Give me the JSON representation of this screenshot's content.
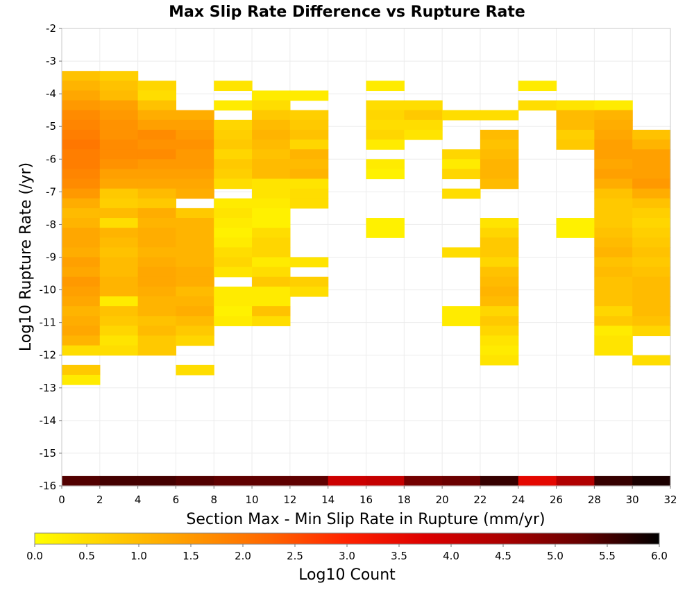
{
  "chart_data": {
    "type": "heatmap",
    "title": "Max Slip Rate Difference vs Rupture Rate",
    "xlabel": "Section Max - Min Slip Rate in Rupture (mm/yr)",
    "ylabel": "Log10 Rupture Rate (/yr)",
    "xlim": [
      0,
      32
    ],
    "ylim": [
      -16,
      -2
    ],
    "x_ticks": [
      0,
      2,
      4,
      6,
      8,
      10,
      12,
      14,
      16,
      18,
      20,
      22,
      24,
      26,
      28,
      30,
      32
    ],
    "y_ticks": [
      -2,
      -3,
      -4,
      -5,
      -6,
      -7,
      -8,
      -9,
      -10,
      -11,
      -12,
      -13,
      -14,
      -15,
      -16
    ],
    "x_bin_width": 2,
    "y_bin_height": 0.3,
    "grid": true,
    "colorbar": {
      "label": "Log10 Count",
      "range": [
        0,
        6
      ],
      "ticks": [
        "0.0",
        "0.5",
        "1.0",
        "1.5",
        "2.0",
        "2.5",
        "3.0",
        "3.5",
        "4.0",
        "4.5",
        "5.0",
        "5.5",
        "6.0"
      ],
      "stops": [
        "#ffff00",
        "#ffcc00",
        "#ff9900",
        "#ff6600",
        "#ff2200",
        "#dd0000",
        "#aa0000",
        "#660000",
        "#000000"
      ]
    },
    "columns": [
      {
        "x": 0,
        "cells": [
          [
            -3.3,
            0.9
          ],
          [
            -3.6,
            1.1
          ],
          [
            -3.9,
            1.3
          ],
          [
            -4.2,
            1.5
          ],
          [
            -4.5,
            1.7
          ],
          [
            -4.8,
            1.8
          ],
          [
            -5.1,
            1.9
          ],
          [
            -5.4,
            2.0
          ],
          [
            -5.7,
            1.9
          ],
          [
            -6.0,
            1.9
          ],
          [
            -6.3,
            1.8
          ],
          [
            -6.6,
            1.7
          ],
          [
            -6.9,
            1.5
          ],
          [
            -7.2,
            1.2
          ],
          [
            -7.5,
            1.0
          ],
          [
            -7.8,
            1.1
          ],
          [
            -8.1,
            1.3
          ],
          [
            -8.4,
            1.3
          ],
          [
            -8.7,
            1.2
          ],
          [
            -9.0,
            1.4
          ],
          [
            -9.3,
            1.3
          ],
          [
            -9.6,
            1.5
          ],
          [
            -9.9,
            1.4
          ],
          [
            -10.2,
            1.3
          ],
          [
            -10.5,
            1.1
          ],
          [
            -10.8,
            1.2
          ],
          [
            -11.1,
            1.3
          ],
          [
            -11.4,
            1.1
          ],
          [
            -11.7,
            0.5
          ],
          [
            -12.3,
            0.8
          ],
          [
            -12.6,
            0.3
          ],
          [
            -16.0,
            5.4
          ]
        ]
      },
      {
        "x": 2,
        "cells": [
          [
            -3.3,
            0.7
          ],
          [
            -3.6,
            0.9
          ],
          [
            -3.9,
            1.0
          ],
          [
            -4.2,
            1.4
          ],
          [
            -4.5,
            1.5
          ],
          [
            -4.8,
            1.6
          ],
          [
            -5.1,
            1.6
          ],
          [
            -5.4,
            1.7
          ],
          [
            -5.7,
            1.7
          ],
          [
            -6.0,
            1.6
          ],
          [
            -6.3,
            1.4
          ],
          [
            -6.6,
            1.3
          ],
          [
            -6.9,
            0.8
          ],
          [
            -7.2,
            0.7
          ],
          [
            -7.5,
            1.0
          ],
          [
            -7.8,
            0.5
          ],
          [
            -8.1,
            1.1
          ],
          [
            -8.4,
            1.0
          ],
          [
            -8.7,
            0.9
          ],
          [
            -9.0,
            1.0
          ],
          [
            -9.3,
            1.0
          ],
          [
            -9.6,
            1.1
          ],
          [
            -9.9,
            1.1
          ],
          [
            -10.2,
            0.3
          ],
          [
            -10.5,
            0.9
          ],
          [
            -10.8,
            0.8
          ],
          [
            -11.1,
            0.6
          ],
          [
            -11.4,
            0.4
          ],
          [
            -11.7,
            0.5
          ],
          [
            -16.0,
            5.5
          ]
        ]
      },
      {
        "x": 4,
        "cells": [
          [
            -3.6,
            0.6
          ],
          [
            -3.9,
            0.5
          ],
          [
            -4.2,
            0.9
          ],
          [
            -4.5,
            1.2
          ],
          [
            -4.8,
            1.4
          ],
          [
            -5.1,
            1.7
          ],
          [
            -5.4,
            1.6
          ],
          [
            -5.7,
            1.7
          ],
          [
            -6.0,
            1.5
          ],
          [
            -6.3,
            1.4
          ],
          [
            -6.6,
            1.3
          ],
          [
            -6.9,
            1.0
          ],
          [
            -7.2,
            0.8
          ],
          [
            -7.5,
            1.2
          ],
          [
            -7.8,
            1.1
          ],
          [
            -8.1,
            1.2
          ],
          [
            -8.4,
            1.2
          ],
          [
            -8.7,
            1.1
          ],
          [
            -9.0,
            1.2
          ],
          [
            -9.3,
            1.3
          ],
          [
            -9.6,
            1.3
          ],
          [
            -9.9,
            1.2
          ],
          [
            -10.2,
            1.1
          ],
          [
            -10.5,
            1.1
          ],
          [
            -10.8,
            0.9
          ],
          [
            -11.1,
            1.0
          ],
          [
            -11.4,
            0.8
          ],
          [
            -11.7,
            0.8
          ],
          [
            -16.0,
            5.5
          ]
        ]
      },
      {
        "x": 6,
        "cells": [
          [
            -4.5,
            1.2
          ],
          [
            -4.8,
            1.4
          ],
          [
            -5.1,
            1.5
          ],
          [
            -5.4,
            1.6
          ],
          [
            -5.7,
            1.5
          ],
          [
            -6.0,
            1.5
          ],
          [
            -6.3,
            1.4
          ],
          [
            -6.6,
            1.3
          ],
          [
            -6.9,
            1.2
          ],
          [
            -7.5,
            0.8
          ],
          [
            -7.8,
            1.1
          ],
          [
            -8.1,
            1.1
          ],
          [
            -8.4,
            1.1
          ],
          [
            -8.7,
            1.1
          ],
          [
            -9.0,
            1.1
          ],
          [
            -9.3,
            1.2
          ],
          [
            -9.6,
            1.2
          ],
          [
            -9.9,
            1.0
          ],
          [
            -10.2,
            1.1
          ],
          [
            -10.5,
            1.2
          ],
          [
            -10.8,
            1.0
          ],
          [
            -11.1,
            0.8
          ],
          [
            -11.4,
            0.6
          ],
          [
            -12.3,
            0.5
          ],
          [
            -16.0,
            5.4
          ]
        ]
      },
      {
        "x": 8,
        "cells": [
          [
            -3.6,
            0.4
          ],
          [
            -4.2,
            0.3
          ],
          [
            -4.8,
            0.6
          ],
          [
            -5.1,
            0.7
          ],
          [
            -5.4,
            0.8
          ],
          [
            -5.7,
            0.6
          ],
          [
            -6.0,
            0.8
          ],
          [
            -6.3,
            0.7
          ],
          [
            -6.6,
            0.5
          ],
          [
            -7.2,
            0.3
          ],
          [
            -7.5,
            0.4
          ],
          [
            -7.8,
            0.3
          ],
          [
            -8.1,
            0.2
          ],
          [
            -8.4,
            0.3
          ],
          [
            -8.7,
            0.5
          ],
          [
            -9.0,
            0.6
          ],
          [
            -9.3,
            0.4
          ],
          [
            -9.9,
            0.3
          ],
          [
            -10.2,
            0.3
          ],
          [
            -10.5,
            0.2
          ],
          [
            -10.8,
            0.3
          ],
          [
            -16.0,
            5.3
          ]
        ]
      },
      {
        "x": 10,
        "cells": [
          [
            -3.9,
            0.3
          ],
          [
            -4.2,
            0.5
          ],
          [
            -4.5,
            0.8
          ],
          [
            -4.8,
            1.0
          ],
          [
            -5.1,
            1.1
          ],
          [
            -5.4,
            1.0
          ],
          [
            -5.7,
            0.9
          ],
          [
            -6.0,
            1.0
          ],
          [
            -6.3,
            1.0
          ],
          [
            -6.6,
            0.4
          ],
          [
            -6.9,
            0.4
          ],
          [
            -7.2,
            0.3
          ],
          [
            -7.5,
            0.2
          ],
          [
            -7.8,
            0.2
          ],
          [
            -8.1,
            0.5
          ],
          [
            -8.4,
            0.6
          ],
          [
            -8.7,
            0.6
          ],
          [
            -9.0,
            0.3
          ],
          [
            -9.3,
            0.5
          ],
          [
            -9.6,
            0.8
          ],
          [
            -9.9,
            0.3
          ],
          [
            -10.2,
            0.3
          ],
          [
            -10.5,
            0.9
          ],
          [
            -10.8,
            0.5
          ],
          [
            -16.0,
            5.3
          ]
        ]
      },
      {
        "x": 12,
        "cells": [
          [
            -3.9,
            0.3
          ],
          [
            -4.5,
            0.7
          ],
          [
            -4.8,
            0.8
          ],
          [
            -5.1,
            0.9
          ],
          [
            -5.4,
            0.6
          ],
          [
            -5.7,
            1.1
          ],
          [
            -6.0,
            1.0
          ],
          [
            -6.3,
            1.1
          ],
          [
            -6.6,
            0.4
          ],
          [
            -6.9,
            0.5
          ],
          [
            -7.2,
            0.5
          ],
          [
            -9.0,
            0.4
          ],
          [
            -9.6,
            0.7
          ],
          [
            -9.9,
            0.5
          ],
          [
            -16.0,
            5.3
          ]
        ]
      },
      {
        "x": 14,
        "cells": [
          [
            -16.0,
            4.0
          ]
        ]
      },
      {
        "x": 16,
        "cells": [
          [
            -3.6,
            0.3
          ],
          [
            -4.2,
            0.5
          ],
          [
            -4.5,
            0.6
          ],
          [
            -4.8,
            0.5
          ],
          [
            -5.1,
            0.6
          ],
          [
            -5.4,
            0.3
          ],
          [
            -6.0,
            0.3
          ],
          [
            -6.3,
            0.2
          ],
          [
            -7.8,
            0.2
          ],
          [
            -8.1,
            0.2
          ],
          [
            -16.0,
            4.1
          ]
        ]
      },
      {
        "x": 18,
        "cells": [
          [
            -4.2,
            0.5
          ],
          [
            -4.5,
            0.8
          ],
          [
            -4.8,
            0.5
          ],
          [
            -5.1,
            0.4
          ],
          [
            -16.0,
            5.1
          ]
        ]
      },
      {
        "x": 20,
        "cells": [
          [
            -4.5,
            0.5
          ],
          [
            -5.7,
            0.6
          ],
          [
            -6.0,
            0.3
          ],
          [
            -6.3,
            0.6
          ],
          [
            -6.9,
            0.5
          ],
          [
            -8.7,
            0.5
          ],
          [
            -10.5,
            0.3
          ],
          [
            -10.8,
            0.3
          ],
          [
            -16.0,
            5.2
          ]
        ]
      },
      {
        "x": 22,
        "cells": [
          [
            -4.5,
            0.5
          ],
          [
            -5.1,
            1.0
          ],
          [
            -5.4,
            0.9
          ],
          [
            -5.7,
            1.0
          ],
          [
            -6.0,
            1.1
          ],
          [
            -6.3,
            1.1
          ],
          [
            -6.6,
            1.0
          ],
          [
            -7.8,
            0.4
          ],
          [
            -8.1,
            0.6
          ],
          [
            -8.4,
            0.8
          ],
          [
            -8.7,
            0.8
          ],
          [
            -9.0,
            0.6
          ],
          [
            -9.3,
            0.9
          ],
          [
            -9.6,
            1.0
          ],
          [
            -9.9,
            1.1
          ],
          [
            -10.2,
            1.0
          ],
          [
            -10.5,
            0.6
          ],
          [
            -10.8,
            0.8
          ],
          [
            -11.1,
            0.6
          ],
          [
            -11.4,
            0.4
          ],
          [
            -11.7,
            0.3
          ],
          [
            -12.0,
            0.4
          ],
          [
            -16.0,
            5.6
          ]
        ]
      },
      {
        "x": 24,
        "cells": [
          [
            -3.6,
            0.3
          ],
          [
            -4.2,
            0.5
          ],
          [
            -16.0,
            3.6
          ]
        ]
      },
      {
        "x": 26,
        "cells": [
          [
            -4.2,
            0.4
          ],
          [
            -4.5,
            1.0
          ],
          [
            -4.8,
            1.0
          ],
          [
            -5.1,
            0.7
          ],
          [
            -5.4,
            0.8
          ],
          [
            -7.8,
            0.2
          ],
          [
            -8.1,
            0.2
          ],
          [
            -16.0,
            4.4
          ]
        ]
      },
      {
        "x": 28,
        "cells": [
          [
            -4.2,
            0.3
          ],
          [
            -4.5,
            1.1
          ],
          [
            -4.8,
            1.2
          ],
          [
            -5.1,
            1.3
          ],
          [
            -5.4,
            1.4
          ],
          [
            -5.7,
            1.4
          ],
          [
            -6.0,
            1.3
          ],
          [
            -6.3,
            1.4
          ],
          [
            -6.6,
            1.2
          ],
          [
            -6.9,
            0.9
          ],
          [
            -7.2,
            0.8
          ],
          [
            -7.5,
            0.8
          ],
          [
            -7.8,
            0.8
          ],
          [
            -8.1,
            0.9
          ],
          [
            -8.4,
            1.0
          ],
          [
            -8.7,
            1.1
          ],
          [
            -9.0,
            0.9
          ],
          [
            -9.3,
            1.0
          ],
          [
            -9.6,
            0.9
          ],
          [
            -9.9,
            0.9
          ],
          [
            -10.2,
            0.9
          ],
          [
            -10.5,
            0.6
          ],
          [
            -10.8,
            0.8
          ],
          [
            -11.1,
            0.3
          ],
          [
            -11.4,
            0.4
          ],
          [
            -11.7,
            0.4
          ],
          [
            -16.0,
            5.6
          ]
        ]
      },
      {
        "x": 30,
        "cells": [
          [
            -5.1,
            0.9
          ],
          [
            -5.4,
            1.1
          ],
          [
            -5.7,
            1.4
          ],
          [
            -6.0,
            1.4
          ],
          [
            -6.3,
            1.4
          ],
          [
            -6.6,
            1.5
          ],
          [
            -6.9,
            1.2
          ],
          [
            -7.2,
            0.9
          ],
          [
            -7.5,
            0.7
          ],
          [
            -7.8,
            0.6
          ],
          [
            -8.1,
            0.7
          ],
          [
            -8.4,
            0.8
          ],
          [
            -8.7,
            0.9
          ],
          [
            -9.0,
            0.8
          ],
          [
            -9.3,
            0.9
          ],
          [
            -9.6,
            1.0
          ],
          [
            -9.9,
            1.0
          ],
          [
            -10.2,
            1.0
          ],
          [
            -10.5,
            1.0
          ],
          [
            -10.8,
            0.9
          ],
          [
            -11.1,
            0.6
          ],
          [
            -12.0,
            0.5
          ],
          [
            -16.0,
            5.8
          ]
        ]
      }
    ]
  }
}
